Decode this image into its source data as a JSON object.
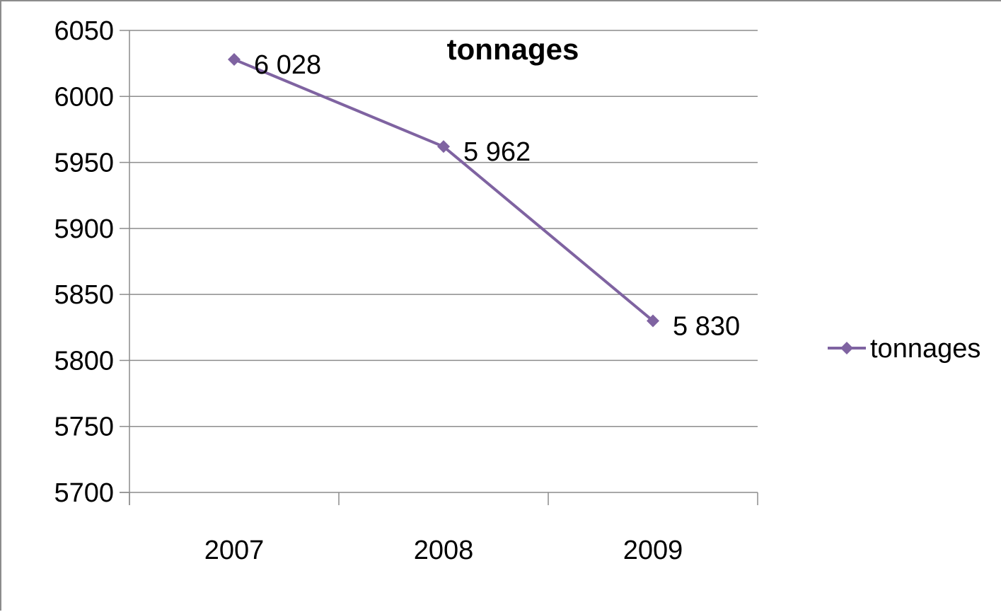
{
  "chart_data": {
    "type": "line",
    "title": "tonnages",
    "categories": [
      "2007",
      "2008",
      "2009"
    ],
    "series": [
      {
        "name": "tonnages",
        "values": [
          6028,
          5962,
          5830
        ],
        "data_labels": [
          "6 028",
          "5 962",
          "5 830"
        ],
        "color": "#7f63a1"
      }
    ],
    "xlabel": "",
    "ylabel": "",
    "ylim": [
      5700,
      6050
    ],
    "yticks": [
      "5700",
      "5750",
      "5800",
      "5850",
      "5900",
      "5950",
      "6000",
      "6050"
    ],
    "grid": true,
    "legend": "right",
    "marker": "diamond"
  }
}
